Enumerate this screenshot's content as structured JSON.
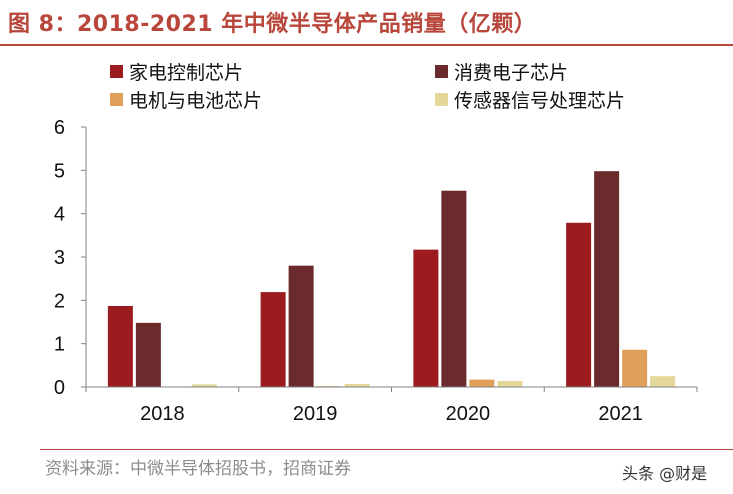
{
  "header": {
    "title": "图 8：2018-2021 年中微半导体产品销量（亿颗）"
  },
  "footer": {
    "source": "资料来源：中微半导体招股书，招商证券",
    "watermark": "头条 @财是"
  },
  "colors": {
    "series": [
      "#9b1b1e",
      "#6b2a2c",
      "#e0a05a",
      "#e3d79a"
    ],
    "title": "#b8463a",
    "axis": "#808080"
  },
  "chart_data": {
    "type": "bar",
    "title": "2018-2021 年中微半导体产品销量（亿颗）",
    "categories": [
      "2018",
      "2019",
      "2020",
      "2021"
    ],
    "series": [
      {
        "name": "家电控制芯片",
        "values": [
          1.87,
          2.19,
          3.17,
          3.79
        ]
      },
      {
        "name": "消费电子芯片",
        "values": [
          1.48,
          2.8,
          4.53,
          4.98
        ]
      },
      {
        "name": "电机与电池芯片",
        "values": [
          0.0,
          0.01,
          0.17,
          0.86
        ]
      },
      {
        "name": "传感器信号处理芯片",
        "values": [
          0.06,
          0.07,
          0.14,
          0.25
        ]
      }
    ],
    "yticks": [
      "0",
      "1",
      "2",
      "3",
      "4",
      "5",
      "6"
    ],
    "ylim": [
      0,
      6
    ],
    "xlabel": "",
    "ylabel": "",
    "legend_position": "top"
  }
}
